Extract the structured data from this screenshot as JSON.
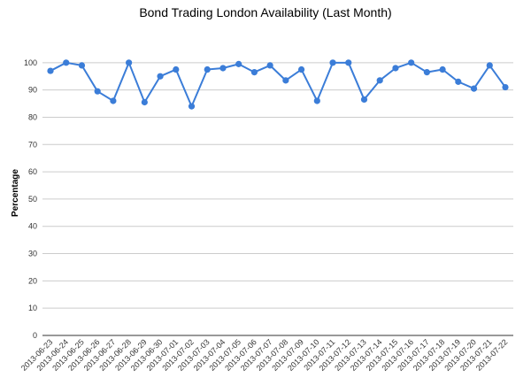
{
  "chart_data": {
    "type": "line",
    "title": "Bond Trading London Availability (Last Month)",
    "xlabel": "",
    "ylabel": "Percentage",
    "ylim": [
      0,
      110
    ],
    "yticks": [
      0,
      10,
      20,
      30,
      40,
      50,
      60,
      70,
      80,
      90,
      100
    ],
    "grid": true,
    "legend": "none",
    "line_color": "#3b7dd8",
    "categories": [
      "2013-06-23",
      "2013-06-24",
      "2013-06-25",
      "2013-06-26",
      "2013-06-27",
      "2013-06-28",
      "2013-06-29",
      "2013-06-30",
      "2013-07-01",
      "2013-07-02",
      "2013-07-03",
      "2013-07-04",
      "2013-07-05",
      "2013-07-06",
      "2013-07-07",
      "2013-07-08",
      "2013-07-09",
      "2013-07-10",
      "2013-07-11",
      "2013-07-12",
      "2013-07-13",
      "2013-07-14",
      "2013-07-15",
      "2013-07-16",
      "2013-07-17",
      "2013-07-18",
      "2013-07-19",
      "2013-07-20",
      "2013-07-21",
      "2013-07-22"
    ],
    "values": [
      97,
      100,
      99,
      89.5,
      86,
      100,
      85.5,
      95,
      97.5,
      84,
      97.5,
      98,
      99.5,
      96.5,
      99,
      93.5,
      97.5,
      86,
      100,
      100,
      86.5,
      93.5,
      98,
      100,
      96.5,
      97.5,
      93,
      90.5,
      99,
      91
    ]
  }
}
